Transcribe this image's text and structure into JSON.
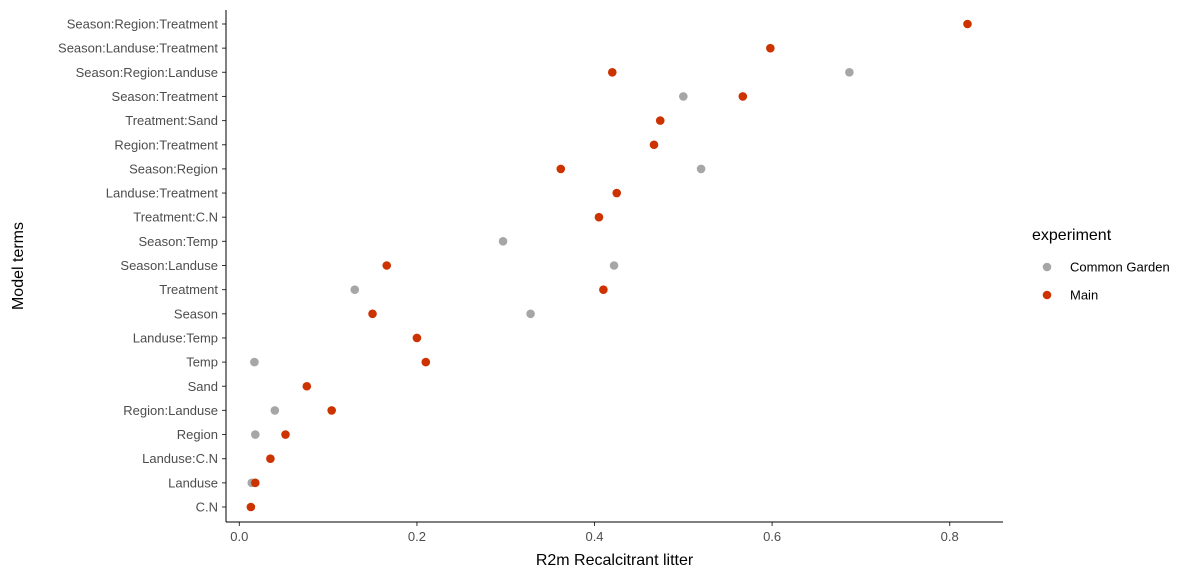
{
  "chart_data": {
    "type": "scatter",
    "orientation": "horizontal-dot",
    "xlabel": "R2m Recalcitrant litter",
    "ylabel": "Model terms",
    "xlim": [
      -0.015,
      0.86
    ],
    "xticks": [
      0.0,
      0.2,
      0.4,
      0.6,
      0.8
    ],
    "xtick_labels": [
      "0.0",
      "0.2",
      "0.4",
      "0.6",
      "0.8"
    ],
    "grid": false,
    "legend": {
      "title": "experiment",
      "position": "right",
      "entries": [
        {
          "label": "Common Garden",
          "color": "#a6a6a6"
        },
        {
          "label": "Main",
          "color": "#cc3300"
        }
      ]
    },
    "categories": [
      "Season:Region:Treatment",
      "Season:Landuse:Treatment",
      "Season:Region:Landuse",
      "Season:Treatment",
      "Treatment:Sand",
      "Region:Treatment",
      "Season:Region",
      "Landuse:Treatment",
      "Treatment:C.N",
      "Season:Temp",
      "Season:Landuse",
      "Treatment",
      "Season",
      "Landuse:Temp",
      "Temp",
      "Sand",
      "Region:Landuse",
      "Region",
      "Landuse:C.N",
      "Landuse",
      "C.N"
    ],
    "series": [
      {
        "name": "Common Garden",
        "color": "#a6a6a6",
        "points": [
          {
            "y": "Season:Region:Landuse",
            "x": 0.687
          },
          {
            "y": "Season:Treatment",
            "x": 0.5
          },
          {
            "y": "Season:Region",
            "x": 0.52
          },
          {
            "y": "Season:Temp",
            "x": 0.297
          },
          {
            "y": "Season:Landuse",
            "x": 0.422
          },
          {
            "y": "Treatment",
            "x": 0.13
          },
          {
            "y": "Season",
            "x": 0.328
          },
          {
            "y": "Temp",
            "x": 0.017
          },
          {
            "y": "Region:Landuse",
            "x": 0.04
          },
          {
            "y": "Region",
            "x": 0.018
          },
          {
            "y": "Landuse",
            "x": 0.014
          }
        ]
      },
      {
        "name": "Main",
        "color": "#cc3300",
        "points": [
          {
            "y": "Season:Region:Treatment",
            "x": 0.82
          },
          {
            "y": "Season:Landuse:Treatment",
            "x": 0.598
          },
          {
            "y": "Season:Region:Landuse",
            "x": 0.42
          },
          {
            "y": "Season:Treatment",
            "x": 0.567
          },
          {
            "y": "Treatment:Sand",
            "x": 0.474
          },
          {
            "y": "Region:Treatment",
            "x": 0.467
          },
          {
            "y": "Season:Region",
            "x": 0.362
          },
          {
            "y": "Landuse:Treatment",
            "x": 0.425
          },
          {
            "y": "Treatment:C.N",
            "x": 0.405
          },
          {
            "y": "Season:Landuse",
            "x": 0.166
          },
          {
            "y": "Treatment",
            "x": 0.41
          },
          {
            "y": "Season",
            "x": 0.15
          },
          {
            "y": "Landuse:Temp",
            "x": 0.2
          },
          {
            "y": "Temp",
            "x": 0.21
          },
          {
            "y": "Sand",
            "x": 0.076
          },
          {
            "y": "Region:Landuse",
            "x": 0.104
          },
          {
            "y": "Region",
            "x": 0.052
          },
          {
            "y": "Landuse:C.N",
            "x": 0.035
          },
          {
            "y": "Landuse",
            "x": 0.018
          },
          {
            "y": "C.N",
            "x": 0.013
          }
        ]
      }
    ]
  }
}
